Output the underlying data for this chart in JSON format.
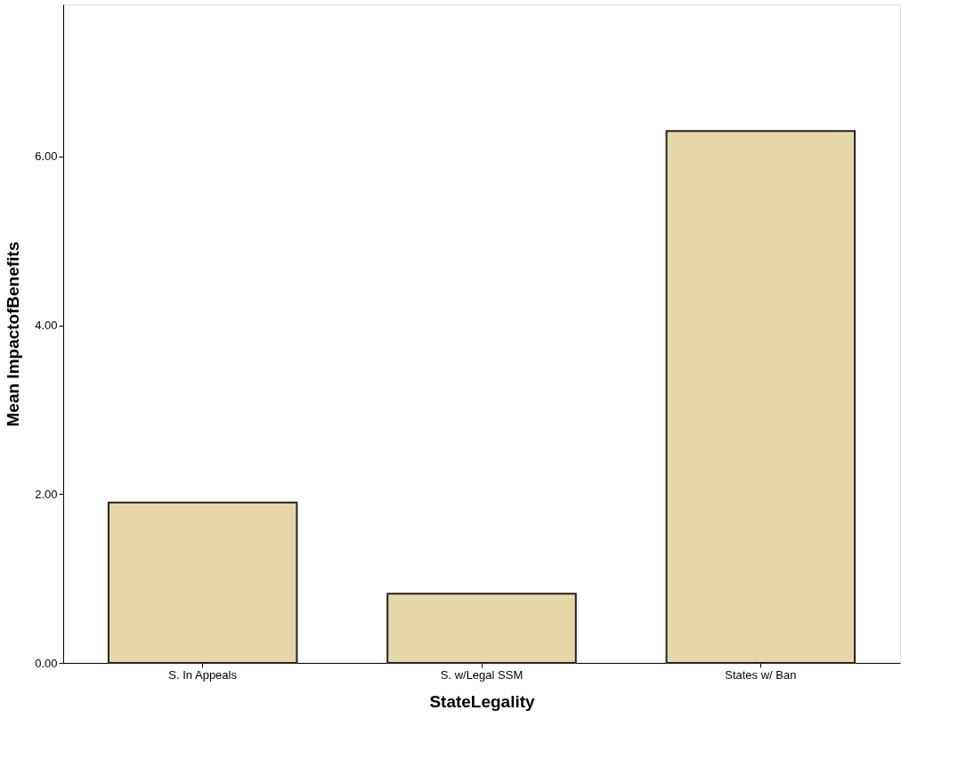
{
  "chart_data": {
    "type": "bar",
    "xlabel": "StateLegality",
    "ylabel": "Mean ImpactofBenefits",
    "categories": [
      "S. In Appeals",
      "S. w/Legal SSM",
      "States w/ Ban"
    ],
    "values": [
      1.9,
      0.82,
      6.3
    ],
    "color": "#e6d7a6",
    "ylim": [
      0,
      7.8
    ],
    "yticks": [
      {
        "value": 0,
        "label": "0.00"
      },
      {
        "value": 2,
        "label": "2.00"
      },
      {
        "value": 4,
        "label": "4.00"
      },
      {
        "value": 6,
        "label": "6.00"
      }
    ],
    "grid": false
  }
}
